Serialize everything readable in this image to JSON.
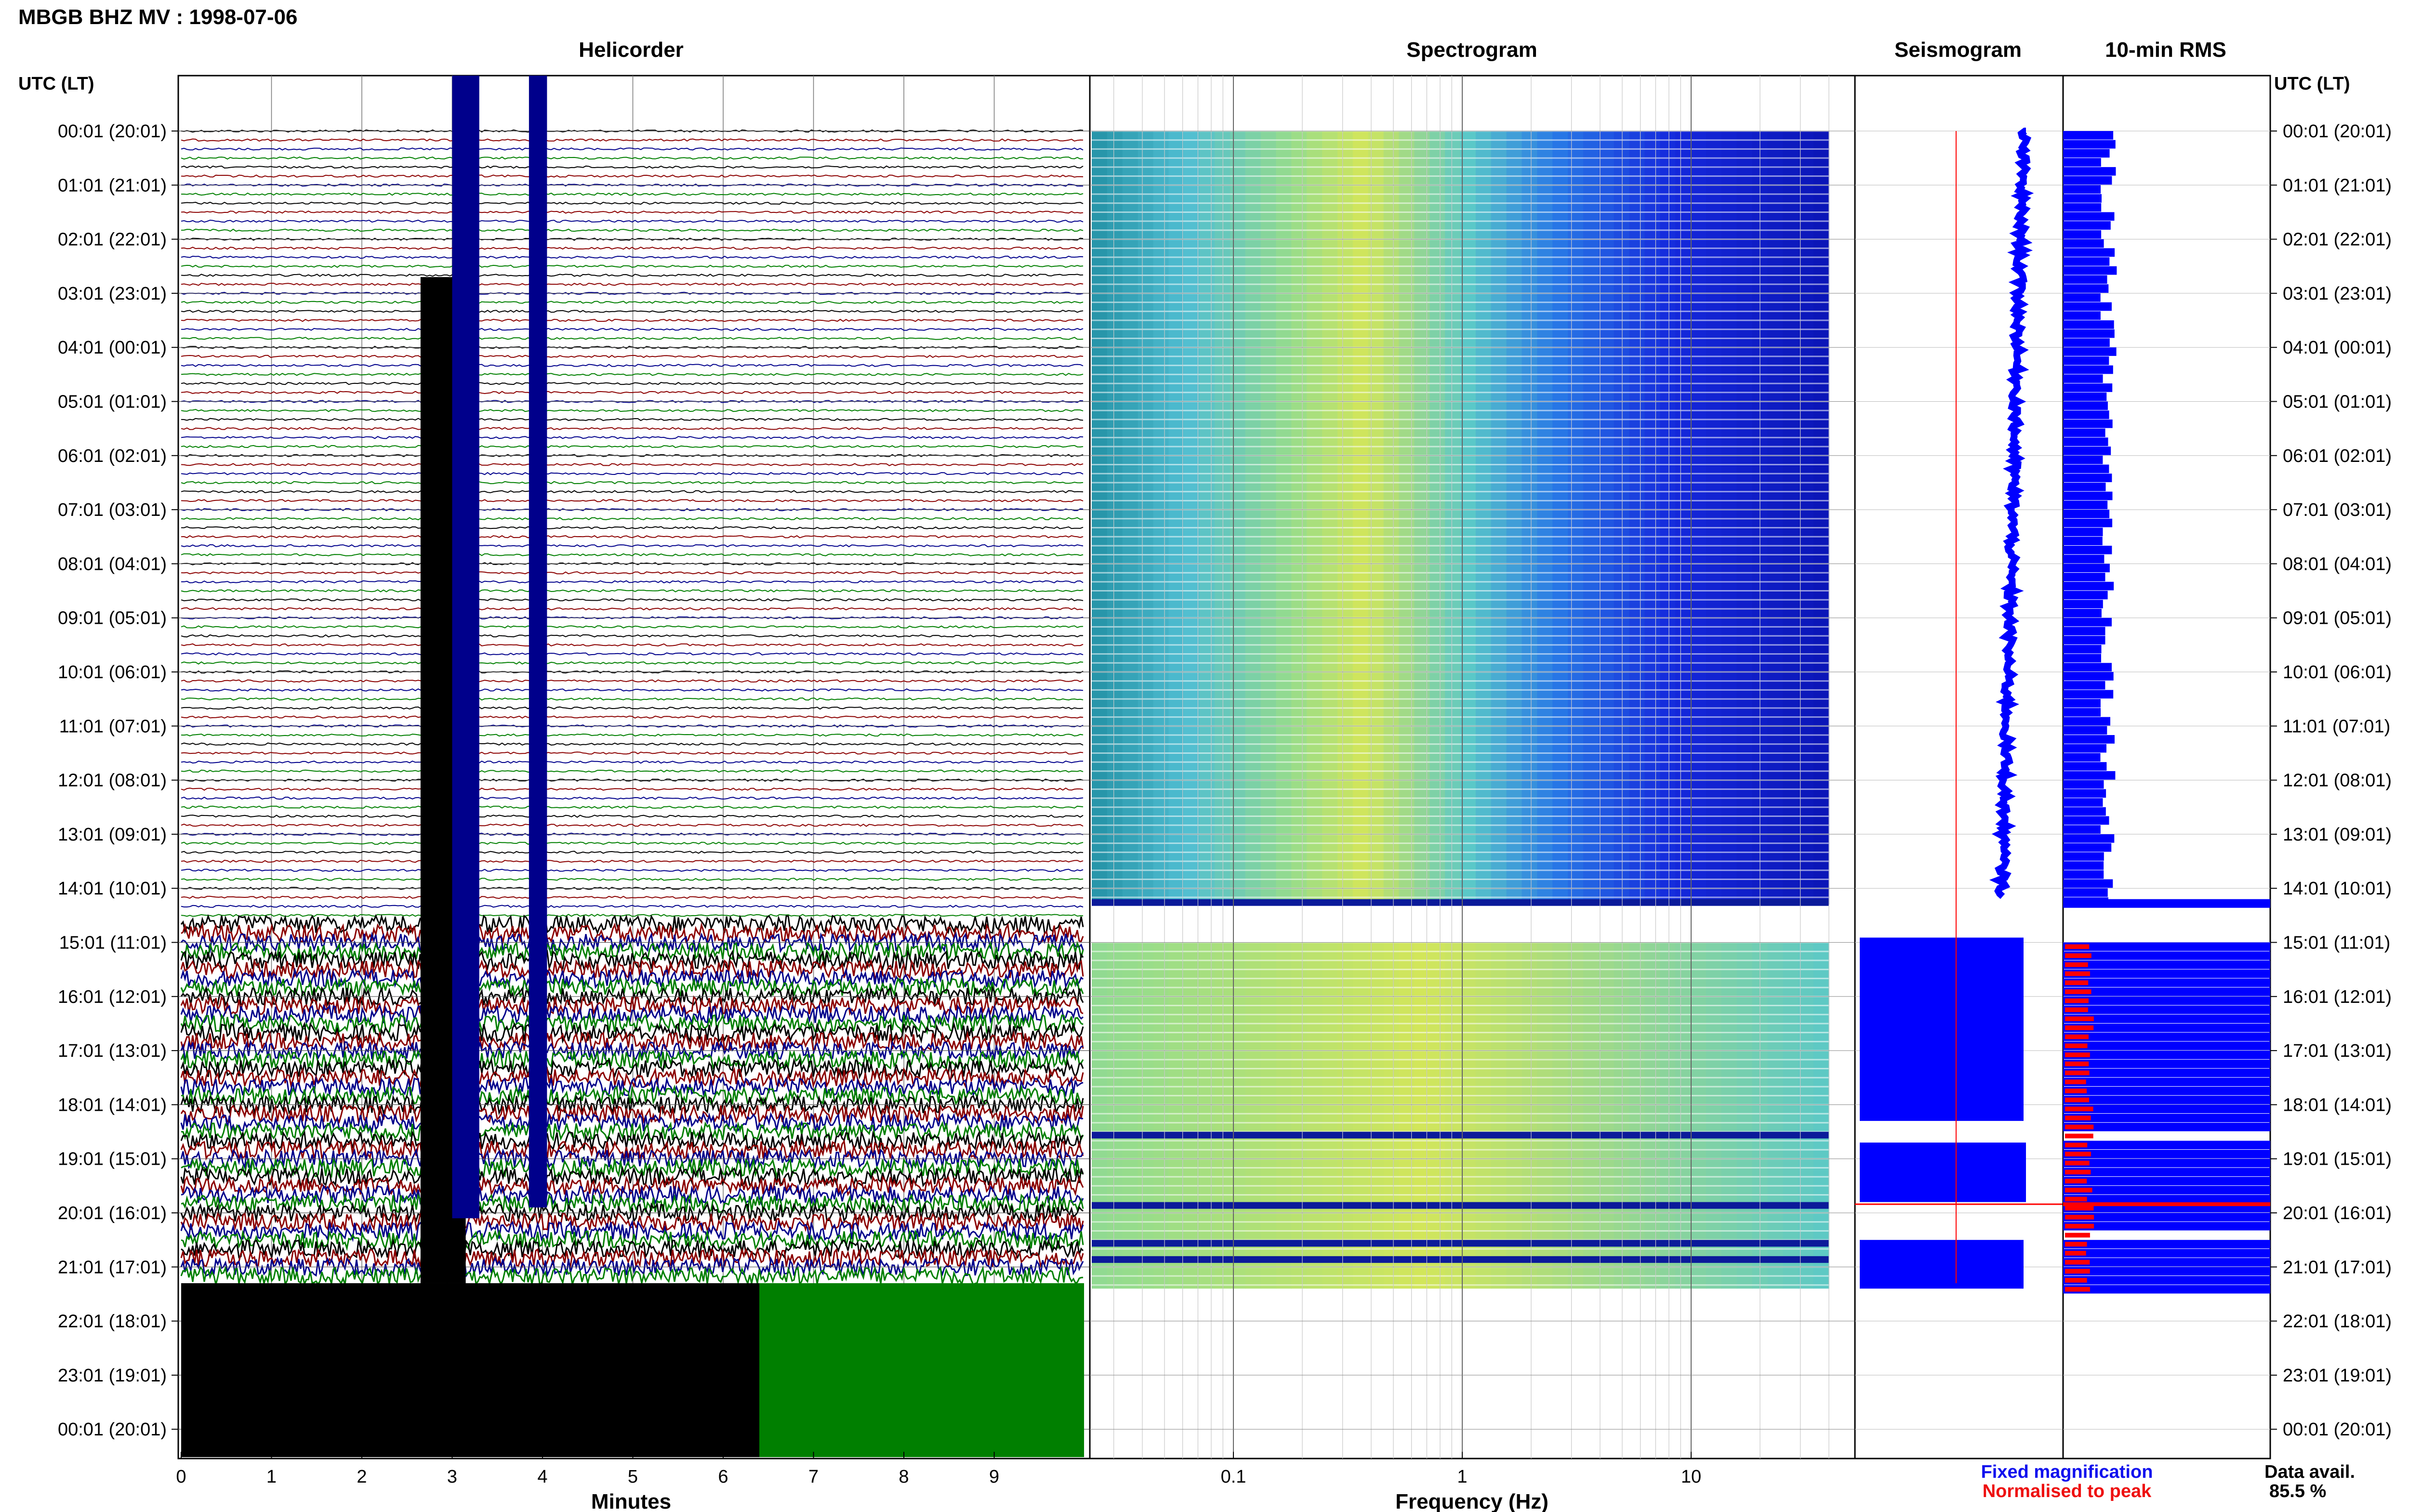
{
  "header": {
    "title": "MBGB BHZ MV : 1998-07-06"
  },
  "panels": {
    "helicorder": "Helicorder",
    "spectrogram": "Spectrogram",
    "seismogram": "Seismogram",
    "rms": "10-min RMS"
  },
  "axis_headers": {
    "left": "UTC (LT)",
    "right": "UTC (LT)"
  },
  "time_labels": [
    "00:01 (20:01)",
    "01:01 (21:01)",
    "02:01 (22:01)",
    "03:01 (23:01)",
    "04:01 (00:01)",
    "05:01 (01:01)",
    "06:01 (02:01)",
    "07:01 (03:01)",
    "08:01 (04:01)",
    "09:01 (05:01)",
    "10:01 (06:01)",
    "11:01 (07:01)",
    "12:01 (08:01)",
    "13:01 (09:01)",
    "14:01 (10:01)",
    "15:01 (11:01)",
    "16:01 (12:01)",
    "17:01 (13:01)",
    "18:01 (14:01)",
    "19:01 (15:01)",
    "20:01 (16:01)",
    "21:01 (17:01)",
    "22:01 (18:01)",
    "23:01 (19:01)",
    "00:01 (20:01)"
  ],
  "footer": {
    "legend_fixed": "Fixed magnification",
    "legend_norm": "Normalised to peak",
    "data_avail_label": "Data avail.",
    "data_avail_value": "85.5 %"
  },
  "colors": {
    "trace_black": "#000000",
    "trace_red": "#8b0000",
    "trace_blue": "#00008b",
    "trace_green": "#007f00",
    "rms_blue": "#0000ff",
    "rms_red": "#ff0000",
    "grid": "#9a9a9a"
  },
  "chart_data": [
    {
      "type": "helicorder",
      "title": "Helicorder",
      "xlabel": "Minutes",
      "xticks": [
        "0",
        "1",
        "2",
        "3",
        "4",
        "5",
        "6",
        "7",
        "8",
        "9"
      ],
      "xlim": [
        0,
        10
      ],
      "rows_per_hour": 6,
      "hours": 24,
      "trace_colors": [
        "black",
        "red",
        "blue",
        "green"
      ],
      "high_noise_start_hour": 14.6,
      "data_end_hour": 21.1,
      "saturated_blocks": [
        {
          "x_start_min": 2.65,
          "x_end_min": 3.15,
          "hour_start": 2.7,
          "hour_end": 21.3
        },
        {
          "x_start_min": 3.0,
          "x_end_min": 3.3,
          "hour_start": 0.0,
          "hour_end": 20.1
        },
        {
          "x_start_min": 3.85,
          "x_end_min": 4.05,
          "hour_start": 0.0,
          "hour_end": 19.9
        }
      ],
      "filled_region_black": {
        "x_start_min": 0,
        "x_end_min": 6.4,
        "hour_start": 21.3,
        "hour_end": 24.5
      },
      "filled_region_green": {
        "x_start_min": 6.4,
        "x_end_min": 10,
        "hour_start": 21.3,
        "hour_end": 24.5
      }
    },
    {
      "type": "heatmap",
      "title": "Spectrogram",
      "xlabel": "Frequency (Hz)",
      "xscale": "log",
      "xticks": [
        "0.1",
        "1",
        "10"
      ],
      "xlim": [
        0.025,
        50
      ],
      "data_max_freq": 40,
      "gaps_after_hours": [
        14.2,
        18.5,
        19.8,
        20.5,
        20.8
      ],
      "data_segments": [
        {
          "hour_start": 0.0,
          "hour_end": 14.3
        },
        {
          "hour_start": 15.0,
          "hour_end": 21.4
        }
      ]
    },
    {
      "type": "line",
      "title": "Seismogram",
      "description_series": [
        "Fixed magnification",
        "Normalised to peak"
      ]
    },
    {
      "type": "bar",
      "title": "10-min RMS",
      "orientation": "horizontal",
      "relative_level_before_14h": 0.22,
      "saturated_after_hour": 14.2,
      "red_bar_level": 0.12
    }
  ]
}
